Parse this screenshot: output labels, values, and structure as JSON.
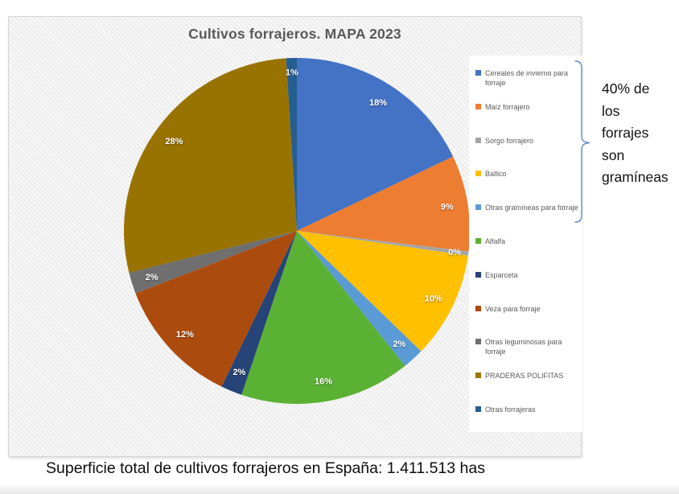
{
  "chart_data": {
    "type": "pie",
    "title": "Cultivos forrajeros. MAPA 2023",
    "start_angle_deg": 0,
    "direction": "clockwise",
    "legend_position": "right",
    "slices": [
      {
        "label": "Cereales de invierno para forraje",
        "pct_label": "18%",
        "value": 18,
        "color": "#4472C4"
      },
      {
        "label": "Maíz forrajero",
        "pct_label": "9%",
        "value": 9,
        "color": "#ED7D31"
      },
      {
        "label": "Sorgo forrajero",
        "pct_label": "0%",
        "value": 0.4,
        "color": "#A5A5A5"
      },
      {
        "label": "Ballico",
        "pct_label": "10%",
        "value": 10,
        "color": "#FFC000"
      },
      {
        "label": "Otras gramíneas para forraje",
        "pct_label": "2%",
        "value": 2,
        "color": "#5B9BD5"
      },
      {
        "label": "Alfalfa",
        "pct_label": "16%",
        "value": 16,
        "color": "#5BB134"
      },
      {
        "label": "Esparceta",
        "pct_label": "2%",
        "value": 2,
        "color": "#264478"
      },
      {
        "label": "Veza para forraje",
        "pct_label": "12%",
        "value": 12,
        "color": "#AC4B0E"
      },
      {
        "label": "Otras leguminosas para forraje",
        "pct_label": "2%",
        "value": 2,
        "color": "#6F6F6F"
      },
      {
        "label": "PRADERAS POLIFITAS",
        "pct_label": "28%",
        "value": 28,
        "color": "#997300"
      },
      {
        "label": "Otras forrajeras",
        "pct_label": "1%",
        "value": 1,
        "color": "#255E91"
      }
    ],
    "annotation_text": "40% de los forrajes son gramíneas",
    "annotation_lines": [
      "40% de",
      "los",
      "forrajes",
      "son",
      "gramíneas"
    ],
    "annotation_bracket_covers": "first 5 legend items (gramíneas)",
    "caption": "Superficie total de cultivos forrajeros en España: 1.411.513 has"
  },
  "colors": {
    "title_text": "#595959",
    "legend_text": "#595959",
    "percent_label_text": "#FFFFFF",
    "bracket": "#5B8AC6",
    "chart_background": "#F1F1F1",
    "legend_background": "#FFFFFF",
    "page_background": "#FFFFFF"
  }
}
